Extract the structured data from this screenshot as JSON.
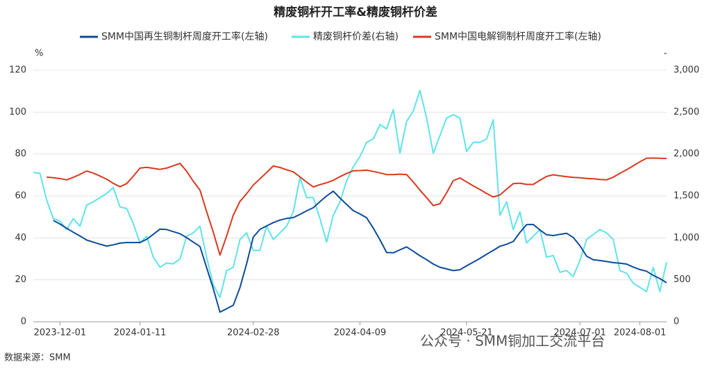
{
  "chart_data": {
    "type": "line",
    "title": "精废铜杆开工率&精废铜杆价差",
    "y_unit": "%",
    "y2_unit": "-",
    "source": "数据来源：SMM",
    "overlay_text": "公众号 · SMM铜加工交流平台",
    "categories": [
      null,
      null,
      null,
      null,
      "2023-12-01",
      null,
      null,
      null,
      null,
      null,
      null,
      null,
      null,
      null,
      null,
      null,
      "2024-01-11",
      null,
      null,
      null,
      null,
      null,
      null,
      null,
      null,
      null,
      null,
      null,
      null,
      null,
      null,
      null,
      null,
      "2024-02-28",
      null,
      null,
      null,
      null,
      null,
      null,
      null,
      null,
      null,
      null,
      null,
      null,
      null,
      null,
      null,
      "2024-04-09",
      null,
      null,
      null,
      null,
      null,
      null,
      null,
      null,
      null,
      null,
      null,
      null,
      null,
      null,
      null,
      "2024-05-21",
      null,
      null,
      null,
      null,
      null,
      null,
      null,
      null,
      null,
      null,
      null,
      null,
      null,
      null,
      null,
      null,
      "2024-07-01",
      null,
      null,
      null,
      null,
      null,
      null,
      null,
      null,
      "2024-08-01",
      null,
      null,
      null,
      null
    ],
    "series": [
      {
        "name": "SMM中国再生铜制杆周度开工率(左轴)",
        "color": "#0d4a9a",
        "axis": "y",
        "values": [
          null,
          null,
          null,
          48.3,
          46.6,
          44.6,
          42.7,
          40.9,
          39,
          38,
          37,
          36.1,
          36.7,
          37.5,
          37.8,
          37.8,
          37.8,
          39.3,
          41.7,
          44.2,
          44,
          43,
          42,
          40.1,
          38,
          35.9,
          25.8,
          15.7,
          4.6,
          6.2,
          7.9,
          16.3,
          27.7,
          40.4,
          44.1,
          45.7,
          47.3,
          48.5,
          49.3,
          49.7,
          51.2,
          52.9,
          54.4,
          57.3,
          60,
          62.3,
          59,
          56,
          53,
          51.4,
          49.6,
          44.7,
          39.1,
          33,
          32.9,
          34.3,
          35.7,
          33.6,
          31.5,
          29.6,
          27.5,
          26,
          25.2,
          24.4,
          24.8,
          26.7,
          28.4,
          30.2,
          32.2,
          34,
          36,
          37,
          38.3,
          42.6,
          46.3,
          46.4,
          43.8,
          41.5,
          41.1,
          41.7,
          42.2,
          40.2,
          36.3,
          31.3,
          29.6,
          29.2,
          28.7,
          28.2,
          27.9,
          27.5,
          26.1,
          24.9,
          24.1,
          22.1,
          20.6,
          18.6
        ]
      },
      {
        "name": "精废铜杆价差(右轴)",
        "color": "#5ee3ea",
        "axis": "y2",
        "values": [
          1780,
          1770,
          1450,
          1230,
          1200,
          1100,
          1230,
          1140,
          1390,
          1430,
          1480,
          1530,
          1600,
          1370,
          1350,
          1170,
          940,
          1020,
          770,
          650,
          700,
          690,
          750,
          1020,
          1060,
          1140,
          770,
          440,
          290,
          610,
          650,
          980,
          1060,
          850,
          850,
          1140,
          980,
          1060,
          1140,
          1310,
          1720,
          1480,
          1480,
          1230,
          950,
          1270,
          1430,
          1680,
          1850,
          1970,
          2140,
          2180,
          2350,
          2300,
          2530,
          2010,
          2390,
          2510,
          2760,
          2430,
          2010,
          2220,
          2430,
          2470,
          2430,
          2030,
          2140,
          2140,
          2180,
          2410,
          1270,
          1430,
          1100,
          1310,
          940,
          1020,
          1100,
          770,
          790,
          590,
          610,
          540,
          730,
          980,
          1040,
          1100,
          1060,
          980,
          610,
          580,
          460,
          410,
          360,
          650,
          360,
          710
        ]
      },
      {
        "name": "SMM中国电解铜制杆周度开工率(左轴)",
        "color": "#d9381e",
        "axis": "y",
        "values": [
          null,
          null,
          69,
          68.7,
          68.3,
          67.7,
          68.9,
          70.3,
          71.9,
          70.9,
          69.5,
          68,
          66,
          64.4,
          65.9,
          69.4,
          73.3,
          73.7,
          73.2,
          72.7,
          73.3,
          74.4,
          75.5,
          71.8,
          67,
          62.8,
          52.5,
          42.7,
          31.8,
          40.9,
          50.9,
          57.4,
          61.1,
          65.2,
          68.2,
          71.2,
          74.3,
          73.6,
          72.5,
          71.5,
          69.1,
          66.6,
          64.3,
          65.4,
          66.3,
          67.5,
          69.2,
          70.7,
          72,
          72.1,
          72.3,
          71.7,
          71,
          70.2,
          70.2,
          70.4,
          70.2,
          66.7,
          62.8,
          59.2,
          55.4,
          56.3,
          61.5,
          67.3,
          68.6,
          66.7,
          64.8,
          63.1,
          61.2,
          59.5,
          60.5,
          63.2,
          65.9,
          66.1,
          65.5,
          65.5,
          67.5,
          69.3,
          70.1,
          69.6,
          69.2,
          68.9,
          68.7,
          68.4,
          68.2,
          67.9,
          67.7,
          69,
          70.8,
          72.5,
          74.4,
          76.3,
          78,
          78.1,
          78,
          77.9
        ]
      }
    ],
    "ylim": [
      0,
      120
    ],
    "yticks": [
      0,
      20,
      40,
      60,
      80,
      100,
      120
    ],
    "y2lim": [
      0,
      3000
    ],
    "y2ticks": [
      0,
      500,
      {
        "value": 1000,
        "label": "1,000"
      },
      {
        "value": 1500,
        "label": "1,500"
      },
      {
        "value": 2000,
        "label": "2,000"
      },
      {
        "value": 2500,
        "label": "2,500"
      },
      {
        "value": 3000,
        "label": "3,000"
      }
    ],
    "grid": true
  }
}
